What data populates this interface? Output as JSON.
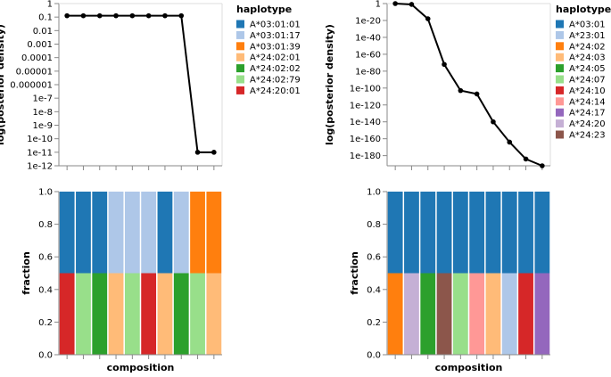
{
  "chart_data": [
    {
      "type": "line",
      "panel": "left-top",
      "ylabel": "log(posterior density)",
      "y_scale": "log",
      "y_ticks": [
        "1",
        "0.1",
        "0.01",
        "0.001",
        "0.0001",
        "0.00001",
        "0.000001",
        "1e-7",
        "1e-8",
        "1e-9",
        "1e-10",
        "1e-11",
        "1e-12"
      ],
      "y_tick_exponents": [
        0,
        -1,
        -2,
        -3,
        -4,
        -5,
        -6,
        -7,
        -8,
        -9,
        -10,
        -11,
        -12
      ],
      "y_range_exponents": [
        -12,
        0
      ],
      "n_compositions": 10,
      "y_exponents": [
        -0.9,
        -0.9,
        -0.9,
        -0.9,
        -0.9,
        -0.9,
        -0.9,
        -0.9,
        -11,
        -11
      ]
    },
    {
      "type": "stacked-bar",
      "panel": "left-bottom",
      "xlabel": "composition",
      "ylabel": "fraction",
      "y_ticks": [
        "0.0",
        "0.2",
        "0.4",
        "0.6",
        "0.8",
        "1.0"
      ],
      "y_tick_values": [
        0,
        0.2,
        0.4,
        0.6,
        0.8,
        1.0
      ],
      "ylim": [
        0,
        1
      ],
      "compositions": [
        [
          {
            "haplotype": "A*24:20:01",
            "value": 0.5
          },
          {
            "haplotype": "A*03:01:01",
            "value": 0.5
          }
        ],
        [
          {
            "haplotype": "A*24:02:79",
            "value": 0.5
          },
          {
            "haplotype": "A*03:01:01",
            "value": 0.5
          }
        ],
        [
          {
            "haplotype": "A*24:02:02",
            "value": 0.5
          },
          {
            "haplotype": "A*03:01:01",
            "value": 0.5
          }
        ],
        [
          {
            "haplotype": "A*24:02:01",
            "value": 0.5
          },
          {
            "haplotype": "A*03:01:17",
            "value": 0.5
          }
        ],
        [
          {
            "haplotype": "A*24:02:79",
            "value": 0.5
          },
          {
            "haplotype": "A*03:01:17",
            "value": 0.5
          }
        ],
        [
          {
            "haplotype": "A*24:20:01",
            "value": 0.5
          },
          {
            "haplotype": "A*03:01:17",
            "value": 0.5
          }
        ],
        [
          {
            "haplotype": "A*24:02:01",
            "value": 0.5
          },
          {
            "haplotype": "A*03:01:01",
            "value": 0.5
          }
        ],
        [
          {
            "haplotype": "A*24:02:02",
            "value": 0.5
          },
          {
            "haplotype": "A*03:01:17",
            "value": 0.5
          }
        ],
        [
          {
            "haplotype": "A*24:02:79",
            "value": 0.5
          },
          {
            "haplotype": "A*03:01:39",
            "value": 0.5
          }
        ],
        [
          {
            "haplotype": "A*24:02:01",
            "value": 0.5
          },
          {
            "haplotype": "A*03:01:39",
            "value": 0.5
          }
        ]
      ]
    },
    {
      "type": "line",
      "panel": "right-top",
      "ylabel": "log(posterior density)",
      "y_scale": "log",
      "y_ticks": [
        "1",
        "1e-20",
        "1e-40",
        "1e-60",
        "1e-80",
        "1e-100",
        "1e-120",
        "1e-140",
        "1e-160",
        "1e-180"
      ],
      "y_tick_exponents": [
        0,
        -20,
        -40,
        -60,
        -80,
        -100,
        -120,
        -140,
        -160,
        -180
      ],
      "y_range_exponents": [
        -192,
        0
      ],
      "n_compositions": 10,
      "y_exponents": [
        0,
        -1,
        -18,
        -72,
        -103,
        -107,
        -140,
        -164,
        -184,
        -192
      ]
    },
    {
      "type": "stacked-bar",
      "panel": "right-bottom",
      "xlabel": "composition",
      "ylabel": "fraction",
      "y_ticks": [
        "0.0",
        "0.2",
        "0.4",
        "0.6",
        "0.8",
        "1.0"
      ],
      "y_tick_values": [
        0,
        0.2,
        0.4,
        0.6,
        0.8,
        1.0
      ],
      "ylim": [
        0,
        1
      ],
      "compositions": [
        [
          {
            "haplotype": "A*24:02",
            "value": 0.5
          },
          {
            "haplotype": "A*03:01",
            "value": 0.5
          }
        ],
        [
          {
            "haplotype": "A*24:20",
            "value": 0.5
          },
          {
            "haplotype": "A*03:01",
            "value": 0.5
          }
        ],
        [
          {
            "haplotype": "A*24:05",
            "value": 0.5
          },
          {
            "haplotype": "A*03:01",
            "value": 0.5
          }
        ],
        [
          {
            "haplotype": "A*24:23",
            "value": 0.5
          },
          {
            "haplotype": "A*03:01",
            "value": 0.5
          }
        ],
        [
          {
            "haplotype": "A*24:07",
            "value": 0.5
          },
          {
            "haplotype": "A*03:01",
            "value": 0.5
          }
        ],
        [
          {
            "haplotype": "A*24:14",
            "value": 0.5
          },
          {
            "haplotype": "A*03:01",
            "value": 0.5
          }
        ],
        [
          {
            "haplotype": "A*24:03",
            "value": 0.5
          },
          {
            "haplotype": "A*03:01",
            "value": 0.5
          }
        ],
        [
          {
            "haplotype": "A*23:01",
            "value": 0.5
          },
          {
            "haplotype": "A*03:01",
            "value": 0.5
          }
        ],
        [
          {
            "haplotype": "A*24:10",
            "value": 0.5
          },
          {
            "haplotype": "A*03:01",
            "value": 0.5
          }
        ],
        [
          {
            "haplotype": "A*24:17",
            "value": 0.5
          },
          {
            "haplotype": "A*03:01",
            "value": 0.5
          }
        ]
      ]
    }
  ],
  "legends": {
    "left": {
      "title": "haplotype",
      "items": [
        {
          "label": "A*03:01:01",
          "color": "#1f77b4"
        },
        {
          "label": "A*03:01:17",
          "color": "#aec7e8"
        },
        {
          "label": "A*03:01:39",
          "color": "#ff7f0e"
        },
        {
          "label": "A*24:02:01",
          "color": "#ffbb78"
        },
        {
          "label": "A*24:02:02",
          "color": "#2ca02c"
        },
        {
          "label": "A*24:02:79",
          "color": "#98df8a"
        },
        {
          "label": "A*24:20:01",
          "color": "#d62728"
        }
      ]
    },
    "right": {
      "title": "haplotype",
      "items": [
        {
          "label": "A*03:01",
          "color": "#1f77b4"
        },
        {
          "label": "A*23:01",
          "color": "#aec7e8"
        },
        {
          "label": "A*24:02",
          "color": "#ff7f0e"
        },
        {
          "label": "A*24:03",
          "color": "#ffbb78"
        },
        {
          "label": "A*24:05",
          "color": "#2ca02c"
        },
        {
          "label": "A*24:07",
          "color": "#98df8a"
        },
        {
          "label": "A*24:10",
          "color": "#d62728"
        },
        {
          "label": "A*24:14",
          "color": "#ff9896"
        },
        {
          "label": "A*24:17",
          "color": "#9467bd"
        },
        {
          "label": "A*24:20",
          "color": "#c5b0d5"
        },
        {
          "label": "A*24:23",
          "color": "#8c564b"
        }
      ]
    }
  }
}
